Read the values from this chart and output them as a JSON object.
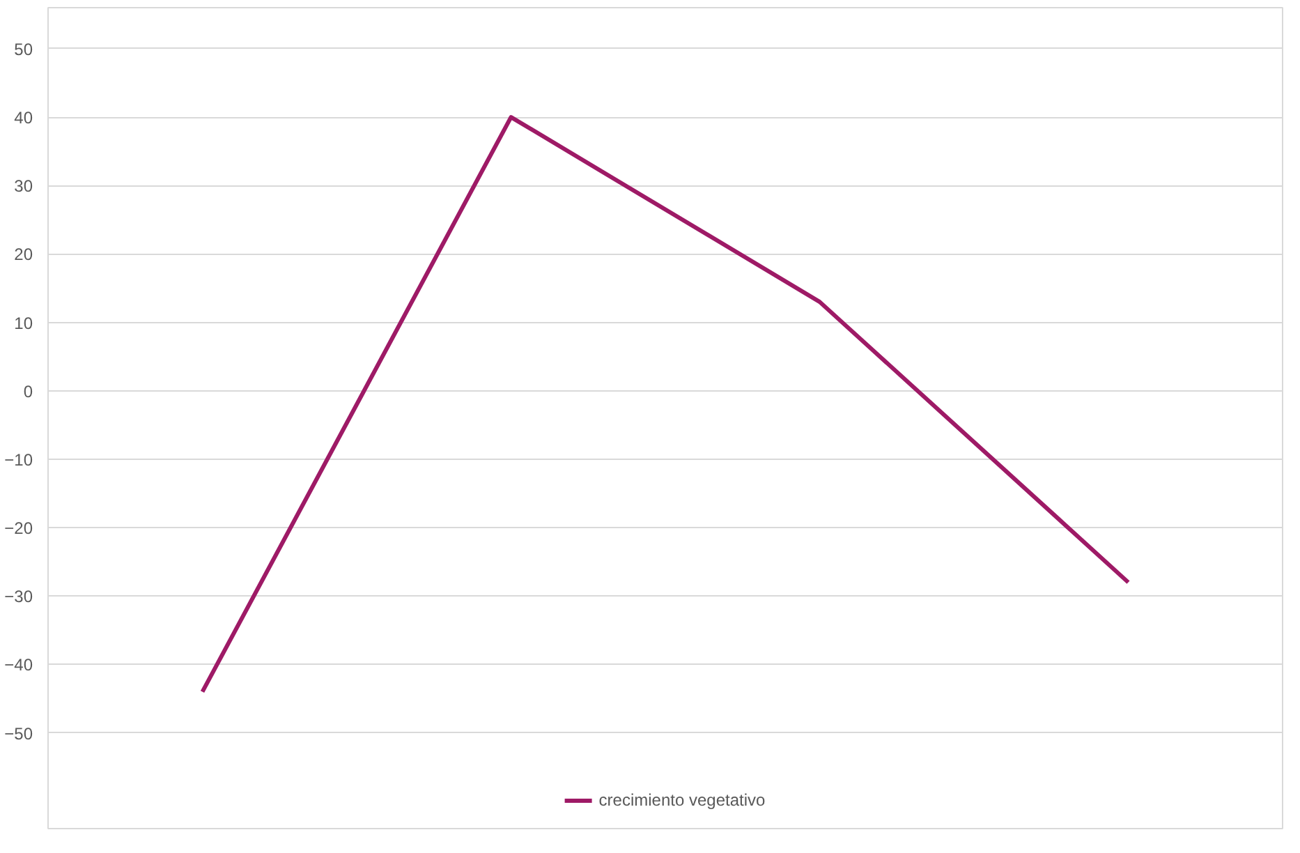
{
  "chart_data": {
    "type": "line",
    "categories": [
      null,
      null,
      null,
      null
    ],
    "series": [
      {
        "name": "crecimiento vegetativo",
        "color": "#9e1a66",
        "values": [
          -44,
          40,
          13,
          -28
        ]
      }
    ],
    "ylim": [
      -64,
      56
    ],
    "yticks": [
      -50,
      -40,
      -30,
      -20,
      -10,
      0,
      10,
      20,
      30,
      40,
      50
    ],
    "grid": "y",
    "legend": "bottom",
    "marker": "none",
    "line_style": "solid"
  }
}
